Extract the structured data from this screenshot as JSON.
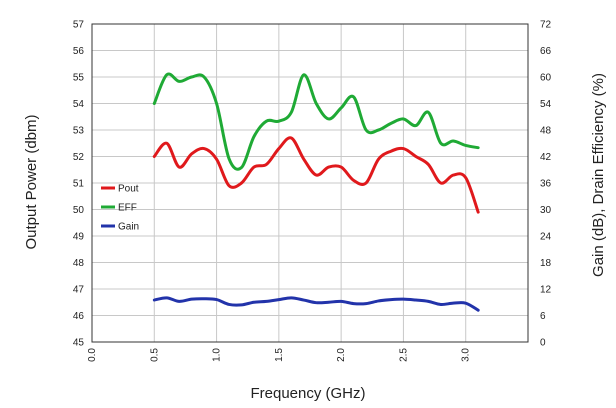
{
  "chart_data": {
    "type": "line",
    "title": "",
    "xlabel": "Frequency (GHz)",
    "ylabel_left": "Output Power (dbm)",
    "ylabel_right": "Gain (dB), Drain Efficiency (%)",
    "xlim": [
      0.0,
      3.5
    ],
    "ylim_left": [
      45,
      57
    ],
    "ylim_right": [
      0,
      72
    ],
    "x_ticks": [
      "0.0",
      "0.5",
      "1.0",
      "1.5",
      "2.0",
      "2.5",
      "3.0"
    ],
    "y_ticks_left": [
      "45",
      "46",
      "47",
      "48",
      "49",
      "50",
      "51",
      "52",
      "53",
      "54",
      "55",
      "56",
      "57"
    ],
    "y_ticks_right": [
      "0",
      "6",
      "12",
      "18",
      "24",
      "30",
      "36",
      "42",
      "48",
      "54",
      "60",
      "66",
      "72"
    ],
    "grid": true,
    "legend_position": "left-middle",
    "series": [
      {
        "name": "Pout",
        "axis": "left",
        "color": "#e0191c",
        "x": [
          0.5,
          0.6,
          0.7,
          0.8,
          0.9,
          1.0,
          1.1,
          1.2,
          1.3,
          1.4,
          1.5,
          1.6,
          1.7,
          1.8,
          1.9,
          2.0,
          2.1,
          2.2,
          2.3,
          2.4,
          2.5,
          2.6,
          2.7,
          2.8,
          2.9,
          3.0,
          3.1
        ],
        "values": [
          52.0,
          52.5,
          51.6,
          52.1,
          52.3,
          51.9,
          50.9,
          51.0,
          51.6,
          51.7,
          52.3,
          52.7,
          51.9,
          51.3,
          51.6,
          51.6,
          51.1,
          51.0,
          51.9,
          52.2,
          52.3,
          52.0,
          51.7,
          51.0,
          51.3,
          51.2,
          49.9
        ]
      },
      {
        "name": "EFF",
        "axis": "right",
        "color": "#1faa35",
        "x": [
          0.5,
          0.6,
          0.7,
          0.8,
          0.9,
          1.0,
          1.1,
          1.2,
          1.3,
          1.4,
          1.5,
          1.6,
          1.7,
          1.8,
          1.9,
          2.0,
          2.1,
          2.2,
          2.3,
          2.4,
          2.5,
          2.6,
          2.7,
          2.8,
          2.9,
          3.0,
          3.1
        ],
        "values": [
          54.0,
          60.5,
          59.0,
          60.0,
          60.0,
          54.0,
          41.5,
          39.5,
          46.5,
          50.0,
          50.0,
          52.0,
          60.5,
          54.0,
          50.5,
          53.0,
          55.5,
          48.0,
          48.0,
          49.5,
          50.5,
          49.0,
          52.0,
          45.0,
          45.5,
          44.5,
          44.0
        ]
      },
      {
        "name": "Gain",
        "axis": "right",
        "color": "#2233aa",
        "x": [
          0.5,
          0.6,
          0.7,
          0.8,
          0.9,
          1.0,
          1.1,
          1.2,
          1.3,
          1.4,
          1.5,
          1.6,
          1.7,
          1.8,
          1.9,
          2.0,
          2.1,
          2.2,
          2.3,
          2.4,
          2.5,
          2.6,
          2.7,
          2.8,
          2.9,
          3.0,
          3.1
        ],
        "values": [
          9.5,
          10.0,
          9.2,
          9.7,
          9.8,
          9.6,
          8.5,
          8.4,
          9.0,
          9.2,
          9.6,
          10.0,
          9.5,
          8.9,
          9.0,
          9.2,
          8.7,
          8.7,
          9.3,
          9.6,
          9.7,
          9.5,
          9.2,
          8.5,
          8.8,
          8.8,
          7.2
        ]
      }
    ]
  }
}
